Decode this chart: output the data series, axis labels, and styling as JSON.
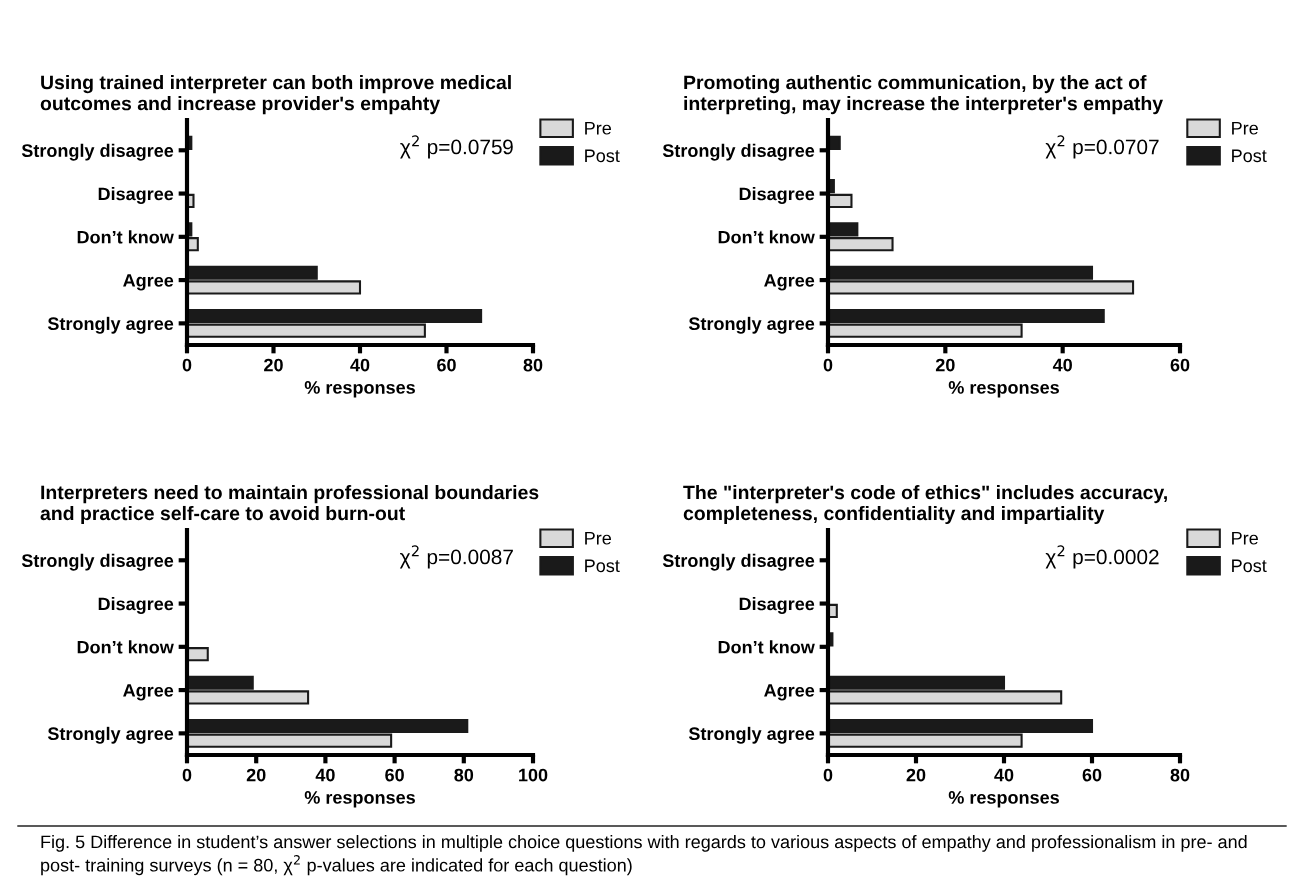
{
  "chart_data": [
    {
      "type": "bar",
      "orientation": "horizontal",
      "title": "Using trained interpreter can both improve medical\noutcomes and increase provider's empahty",
      "categories": [
        "Strongly disagree",
        "Disagree",
        "Don’t know",
        "Agree",
        "Strongly agree"
      ],
      "xlabel": "% responses",
      "xlim": [
        0,
        80
      ],
      "xticks": [
        0,
        20,
        40,
        60,
        80
      ],
      "legend": "right",
      "series": [
        {
          "name": "Pre",
          "color": "#d9d9d9",
          "values": [
            0,
            1.5,
            2.5,
            40,
            55
          ]
        },
        {
          "name": "Post",
          "color": "#1a1a1a",
          "values": [
            1,
            0,
            1,
            30,
            68
          ]
        }
      ],
      "annotations": [
        "χ$^{2}$ p=0.0759"
      ]
    },
    {
      "type": "bar",
      "orientation": "horizontal",
      "title": "Promoting authentic communication, by the act of\ninterpreting, may increase the interpreter's empathy",
      "categories": [
        "Strongly disagree",
        "Disagree",
        "Don’t know",
        "Agree",
        "Strongly agree"
      ],
      "xlabel": "% responses",
      "xlim": [
        0,
        60
      ],
      "xticks": [
        0,
        20,
        40,
        60
      ],
      "legend": "right",
      "series": [
        {
          "name": "Pre",
          "color": "#d9d9d9",
          "values": [
            0,
            4,
            11,
            52,
            33
          ]
        },
        {
          "name": "Post",
          "color": "#1a1a1a",
          "values": [
            2,
            1,
            5,
            45,
            47
          ]
        }
      ],
      "annotations": [
        "χ$^{2}$ p=0.0707"
      ]
    },
    {
      "type": "bar",
      "orientation": "horizontal",
      "title": "Interpreters need to maintain professional boundaries\nand practice self-care to avoid burn-out",
      "categories": [
        "Strongly disagree",
        "Disagree",
        "Don’t know",
        "Agree",
        "Strongly agree"
      ],
      "xlabel": "% responses",
      "xlim": [
        0,
        100
      ],
      "xticks": [
        0,
        20,
        40,
        60,
        80,
        100
      ],
      "legend": "right",
      "series": [
        {
          "name": "Pre",
          "color": "#d9d9d9",
          "values": [
            0,
            0,
            6,
            35,
            59
          ]
        },
        {
          "name": "Post",
          "color": "#1a1a1a",
          "values": [
            0,
            0,
            0,
            19,
            81
          ]
        }
      ],
      "annotations": [
        "χ$^{2}$ p=0.0087"
      ]
    },
    {
      "type": "bar",
      "orientation": "horizontal",
      "title": "The \"interpreter's code of ethics\" includes accuracy,\ncompleteness, confidentiality and impartiality",
      "categories": [
        "Strongly disagree",
        "Disagree",
        "Don’t know",
        "Agree",
        "Strongly agree"
      ],
      "xlabel": "% responses",
      "xlim": [
        0,
        80
      ],
      "xticks": [
        0,
        20,
        40,
        60,
        80
      ],
      "legend": "right",
      "series": [
        {
          "name": "Pre",
          "color": "#d9d9d9",
          "values": [
            0,
            2,
            0,
            53,
            44
          ]
        },
        {
          "name": "Post",
          "color": "#1a1a1a",
          "values": [
            0,
            0,
            1,
            40,
            60
          ]
        }
      ],
      "annotations": [
        "χ$^{2}$ p=0.0002",
        "Fig. 5 Difference in student’s answer selections in multiple choice questions with regards to various aspects of empathy and professionalism in pre- and post- training surveys (n = 80, χ$^{2}$ p-values are indicated for each question)"
      ]
    }
  ]
}
